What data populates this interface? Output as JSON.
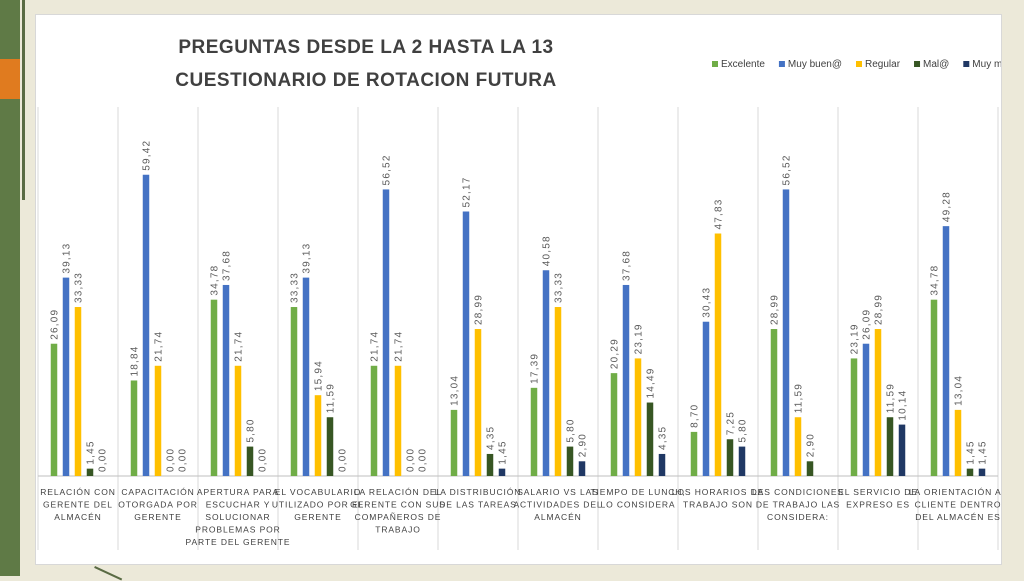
{
  "colors": {
    "Excelente": "#70ad47",
    "Muy buen@": "#4472c4",
    "Regular": "#ffc000",
    "Mal@": "#375623",
    "Muy mal@": "#203864"
  },
  "chart_data": {
    "type": "bar",
    "title": [
      "PREGUNTAS  DESDE LA 2 HASTA LA 13",
      "CUESTIONARIO  DE ROTACION  FUTURA"
    ],
    "xlabel": "",
    "ylabel": "",
    "ylim": [
      0,
      60
    ],
    "grid": false,
    "legend_position": "top-right",
    "categories": [
      [
        "RELACIÓN CON",
        "GERENTE DEL",
        "ALMACÉN"
      ],
      [
        "CAPACITACIÓN",
        "OTORGADA POR",
        "GERENTE"
      ],
      [
        "APERTURA PARA",
        "ESCUCHAR Y",
        "SOLUCIONAR",
        "PROBLEMAS POR",
        "PARTE DEL GERENTE"
      ],
      [
        "EL VOCABULARIO",
        "UTILIZADO POR EL",
        "GERENTE"
      ],
      [
        "LA RELACIÓN DEL",
        "GERENTE CON SUS",
        "COMPAÑEROS DE",
        "TRABAJO"
      ],
      [
        "LA DISTRIBUCIÓN",
        "DE LAS TAREAS"
      ],
      [
        "SALARIO VS LAS",
        "ACTIVIDADES DEL",
        "ALMACÉN"
      ],
      [
        "TIEMPO DE LUNCH,",
        "LO CONSIDERA"
      ],
      [
        "LOS HORARIOS DE",
        "TRABAJO SON"
      ],
      [
        "LAS CONDICIONES",
        "DE TRABAJO LAS",
        "CONSIDERA:"
      ],
      [
        "EL SERVICIO DE",
        "EXPRESO ES"
      ],
      [
        "LA ORIENTACIÓN AL",
        "CLIENTE DENTRO",
        "DEL ALMACÉN ES"
      ]
    ],
    "series": [
      {
        "name": "Excelente",
        "values": [
          26.09,
          18.84,
          34.78,
          33.33,
          21.74,
          13.04,
          17.39,
          20.29,
          8.7,
          28.99,
          23.19,
          34.78
        ],
        "labels": [
          "26,09",
          "18,84",
          "34,78",
          "33,33",
          "21,74",
          "13,04",
          "17,39",
          "20,29",
          "8,70",
          "28,99",
          "23,19",
          "34,78"
        ]
      },
      {
        "name": "Muy buen@",
        "values": [
          39.13,
          59.42,
          37.68,
          39.13,
          56.52,
          52.17,
          40.58,
          37.68,
          30.43,
          56.52,
          26.09,
          49.28
        ],
        "labels": [
          "39,13",
          "59,42",
          "37,68",
          "39,13",
          "56,52",
          "52,17",
          "40,58",
          "37,68",
          "30,43",
          "56,52",
          "26,09",
          "49,28"
        ]
      },
      {
        "name": "Regular",
        "values": [
          33.33,
          21.74,
          21.74,
          15.94,
          21.74,
          28.99,
          33.33,
          23.19,
          47.83,
          11.59,
          28.99,
          13.04
        ],
        "labels": [
          "33,33",
          "21,74",
          "21,74",
          "15,94",
          "21,74",
          "28,99",
          "33,33",
          "23,19",
          "47,83",
          "11,59",
          "28,99",
          "13,04"
        ]
      },
      {
        "name": "Mal@",
        "values": [
          1.45,
          0.0,
          5.8,
          11.59,
          0.0,
          4.35,
          5.8,
          14.49,
          7.25,
          2.9,
          11.59,
          1.45
        ],
        "labels": [
          "1,45",
          "0,00",
          "5,80",
          "11,59",
          "0,00",
          "4,35",
          "5,80",
          "14,49",
          "7,25",
          "2,90",
          "11,59",
          "1,45"
        ]
      },
      {
        "name": "Muy mal@",
        "values": [
          0.0,
          0.0,
          0.0,
          0.0,
          0.0,
          1.45,
          2.9,
          4.35,
          5.8,
          null,
          10.14,
          1.45
        ],
        "labels": [
          "0,00",
          "0,00",
          "0,00",
          "0,00",
          "0,00",
          "1,45",
          "2,90",
          "4,35",
          "5,80",
          "",
          "10,14",
          "1,45"
        ]
      }
    ]
  }
}
